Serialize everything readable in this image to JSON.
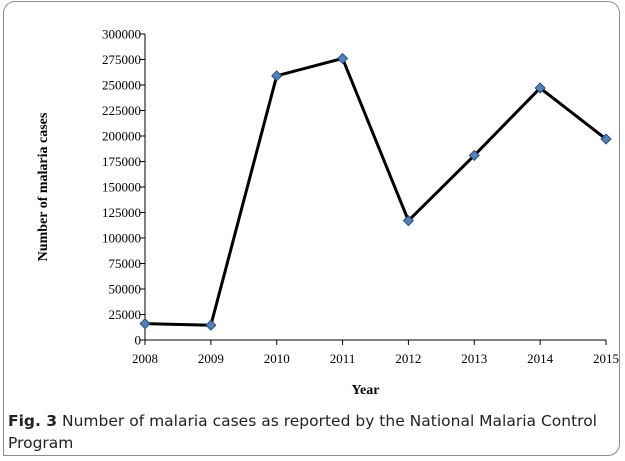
{
  "chart_data": {
    "type": "line",
    "xlabel": "Year",
    "ylabel": "Number of malaria cases",
    "categories": [
      "2008",
      "2009",
      "2010",
      "2011",
      "2012",
      "2013",
      "2014",
      "2015"
    ],
    "series": [
      {
        "values": [
          16000,
          14500,
          259000,
          276000,
          117000,
          181000,
          247000,
          197000
        ]
      }
    ],
    "ylim": [
      0,
      300000
    ],
    "yticks": [
      0,
      25000,
      50000,
      75000,
      100000,
      125000,
      150000,
      175000,
      200000,
      225000,
      250000,
      275000,
      300000
    ],
    "ytick_labels": [
      "0",
      "25000",
      "50000",
      "75000",
      "100000",
      "125000",
      "150000",
      "175000",
      "200000",
      "225000",
      "250000",
      "275000",
      "300000"
    ],
    "grid": false,
    "line_color": "#000000",
    "marker_color": "#4f81bd"
  },
  "caption": {
    "label": "Fig. 3",
    "text": "Number of malaria cases as reported by the National Malaria Control Program"
  }
}
